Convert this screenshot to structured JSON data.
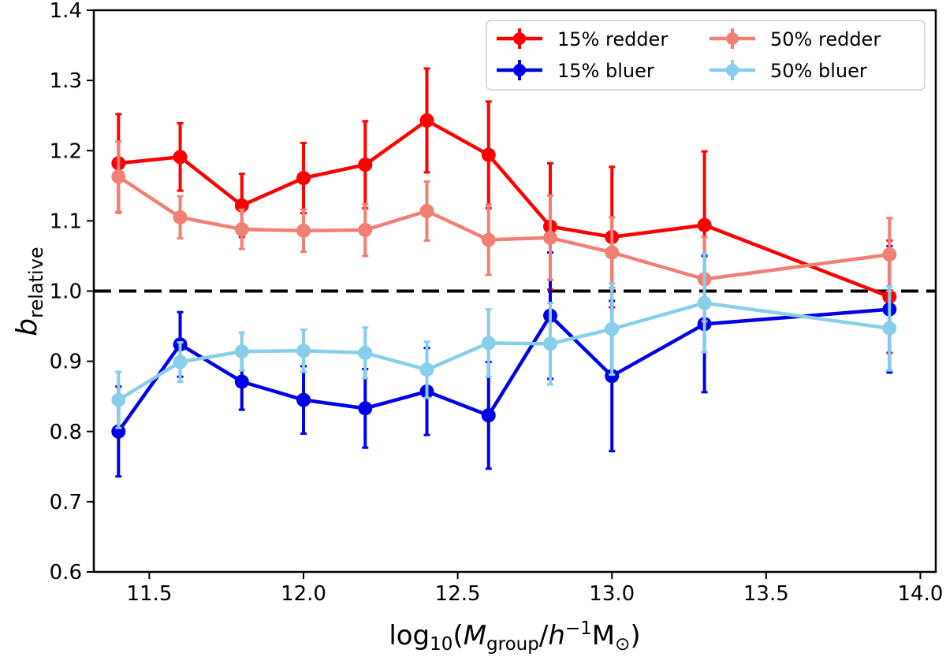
{
  "chart_data": {
    "type": "line",
    "title": "",
    "xlabel": {
      "main": "log",
      "sub1": "10",
      "open": "(",
      "M": "M",
      "sub2": "group",
      "slash": "/",
      "h": "h",
      "sup": "−1",
      "Msun": "M",
      "sun_sub": "⊙",
      "close": ")"
    },
    "ylabel": {
      "main": "b",
      "sub": "relative"
    },
    "xlim": [
      11.32,
      14.05
    ],
    "ylim": [
      0.6,
      1.4
    ],
    "xticks": [
      11.5,
      12.0,
      12.5,
      13.0,
      13.5,
      14.0
    ],
    "xtick_labels": [
      "11.5",
      "12.0",
      "12.5",
      "13.0",
      "13.5",
      "14.0"
    ],
    "yticks": [
      0.6,
      0.7,
      0.8,
      0.9,
      1.0,
      1.1,
      1.2,
      1.3,
      1.4
    ],
    "ytick_labels": [
      "0.6",
      "0.7",
      "0.8",
      "0.9",
      "1.0",
      "1.1",
      "1.2",
      "1.3",
      "1.4"
    ],
    "reference_line": {
      "y": 1.0,
      "style": "dashed",
      "color": "#000000"
    },
    "legend_position": "top-right",
    "x": [
      11.4,
      11.6,
      11.8,
      12.0,
      12.2,
      12.4,
      12.6,
      12.8,
      13.0,
      13.3,
      13.9
    ],
    "series": [
      {
        "name": "15% redder",
        "color": "#ff0000",
        "values": [
          1.182,
          1.191,
          1.122,
          1.161,
          1.18,
          1.243,
          1.194,
          1.092,
          1.077,
          1.094,
          0.992
        ],
        "errors": [
          0.07,
          0.048,
          0.045,
          0.05,
          0.062,
          0.074,
          0.076,
          0.09,
          0.1,
          0.105,
          0.08
        ]
      },
      {
        "name": "15% bluer",
        "color": "#0000e6",
        "values": [
          0.8,
          0.924,
          0.871,
          0.845,
          0.833,
          0.857,
          0.823,
          0.965,
          0.879,
          0.953,
          0.974
        ],
        "errors": [
          0.064,
          0.046,
          0.04,
          0.048,
          0.056,
          0.062,
          0.076,
          0.09,
          0.107,
          0.097,
          0.09
        ]
      },
      {
        "name": "50% redder",
        "color": "#f08074",
        "values": [
          1.163,
          1.105,
          1.088,
          1.086,
          1.087,
          1.114,
          1.073,
          1.076,
          1.055,
          1.017,
          1.052
        ],
        "errors": [
          0.05,
          0.03,
          0.028,
          0.03,
          0.037,
          0.042,
          0.05,
          0.06,
          0.05,
          0.06,
          0.052
        ]
      },
      {
        "name": "50% bluer",
        "color": "#87ceeb",
        "values": [
          0.845,
          0.899,
          0.914,
          0.915,
          0.912,
          0.888,
          0.926,
          0.925,
          0.946,
          0.983,
          0.947
        ],
        "errors": [
          0.04,
          0.028,
          0.027,
          0.03,
          0.036,
          0.04,
          0.048,
          0.058,
          0.065,
          0.07,
          0.06
        ]
      }
    ],
    "legend_entries": [
      "15% redder",
      "15% bluer",
      "50% redder",
      "50% bluer"
    ]
  }
}
